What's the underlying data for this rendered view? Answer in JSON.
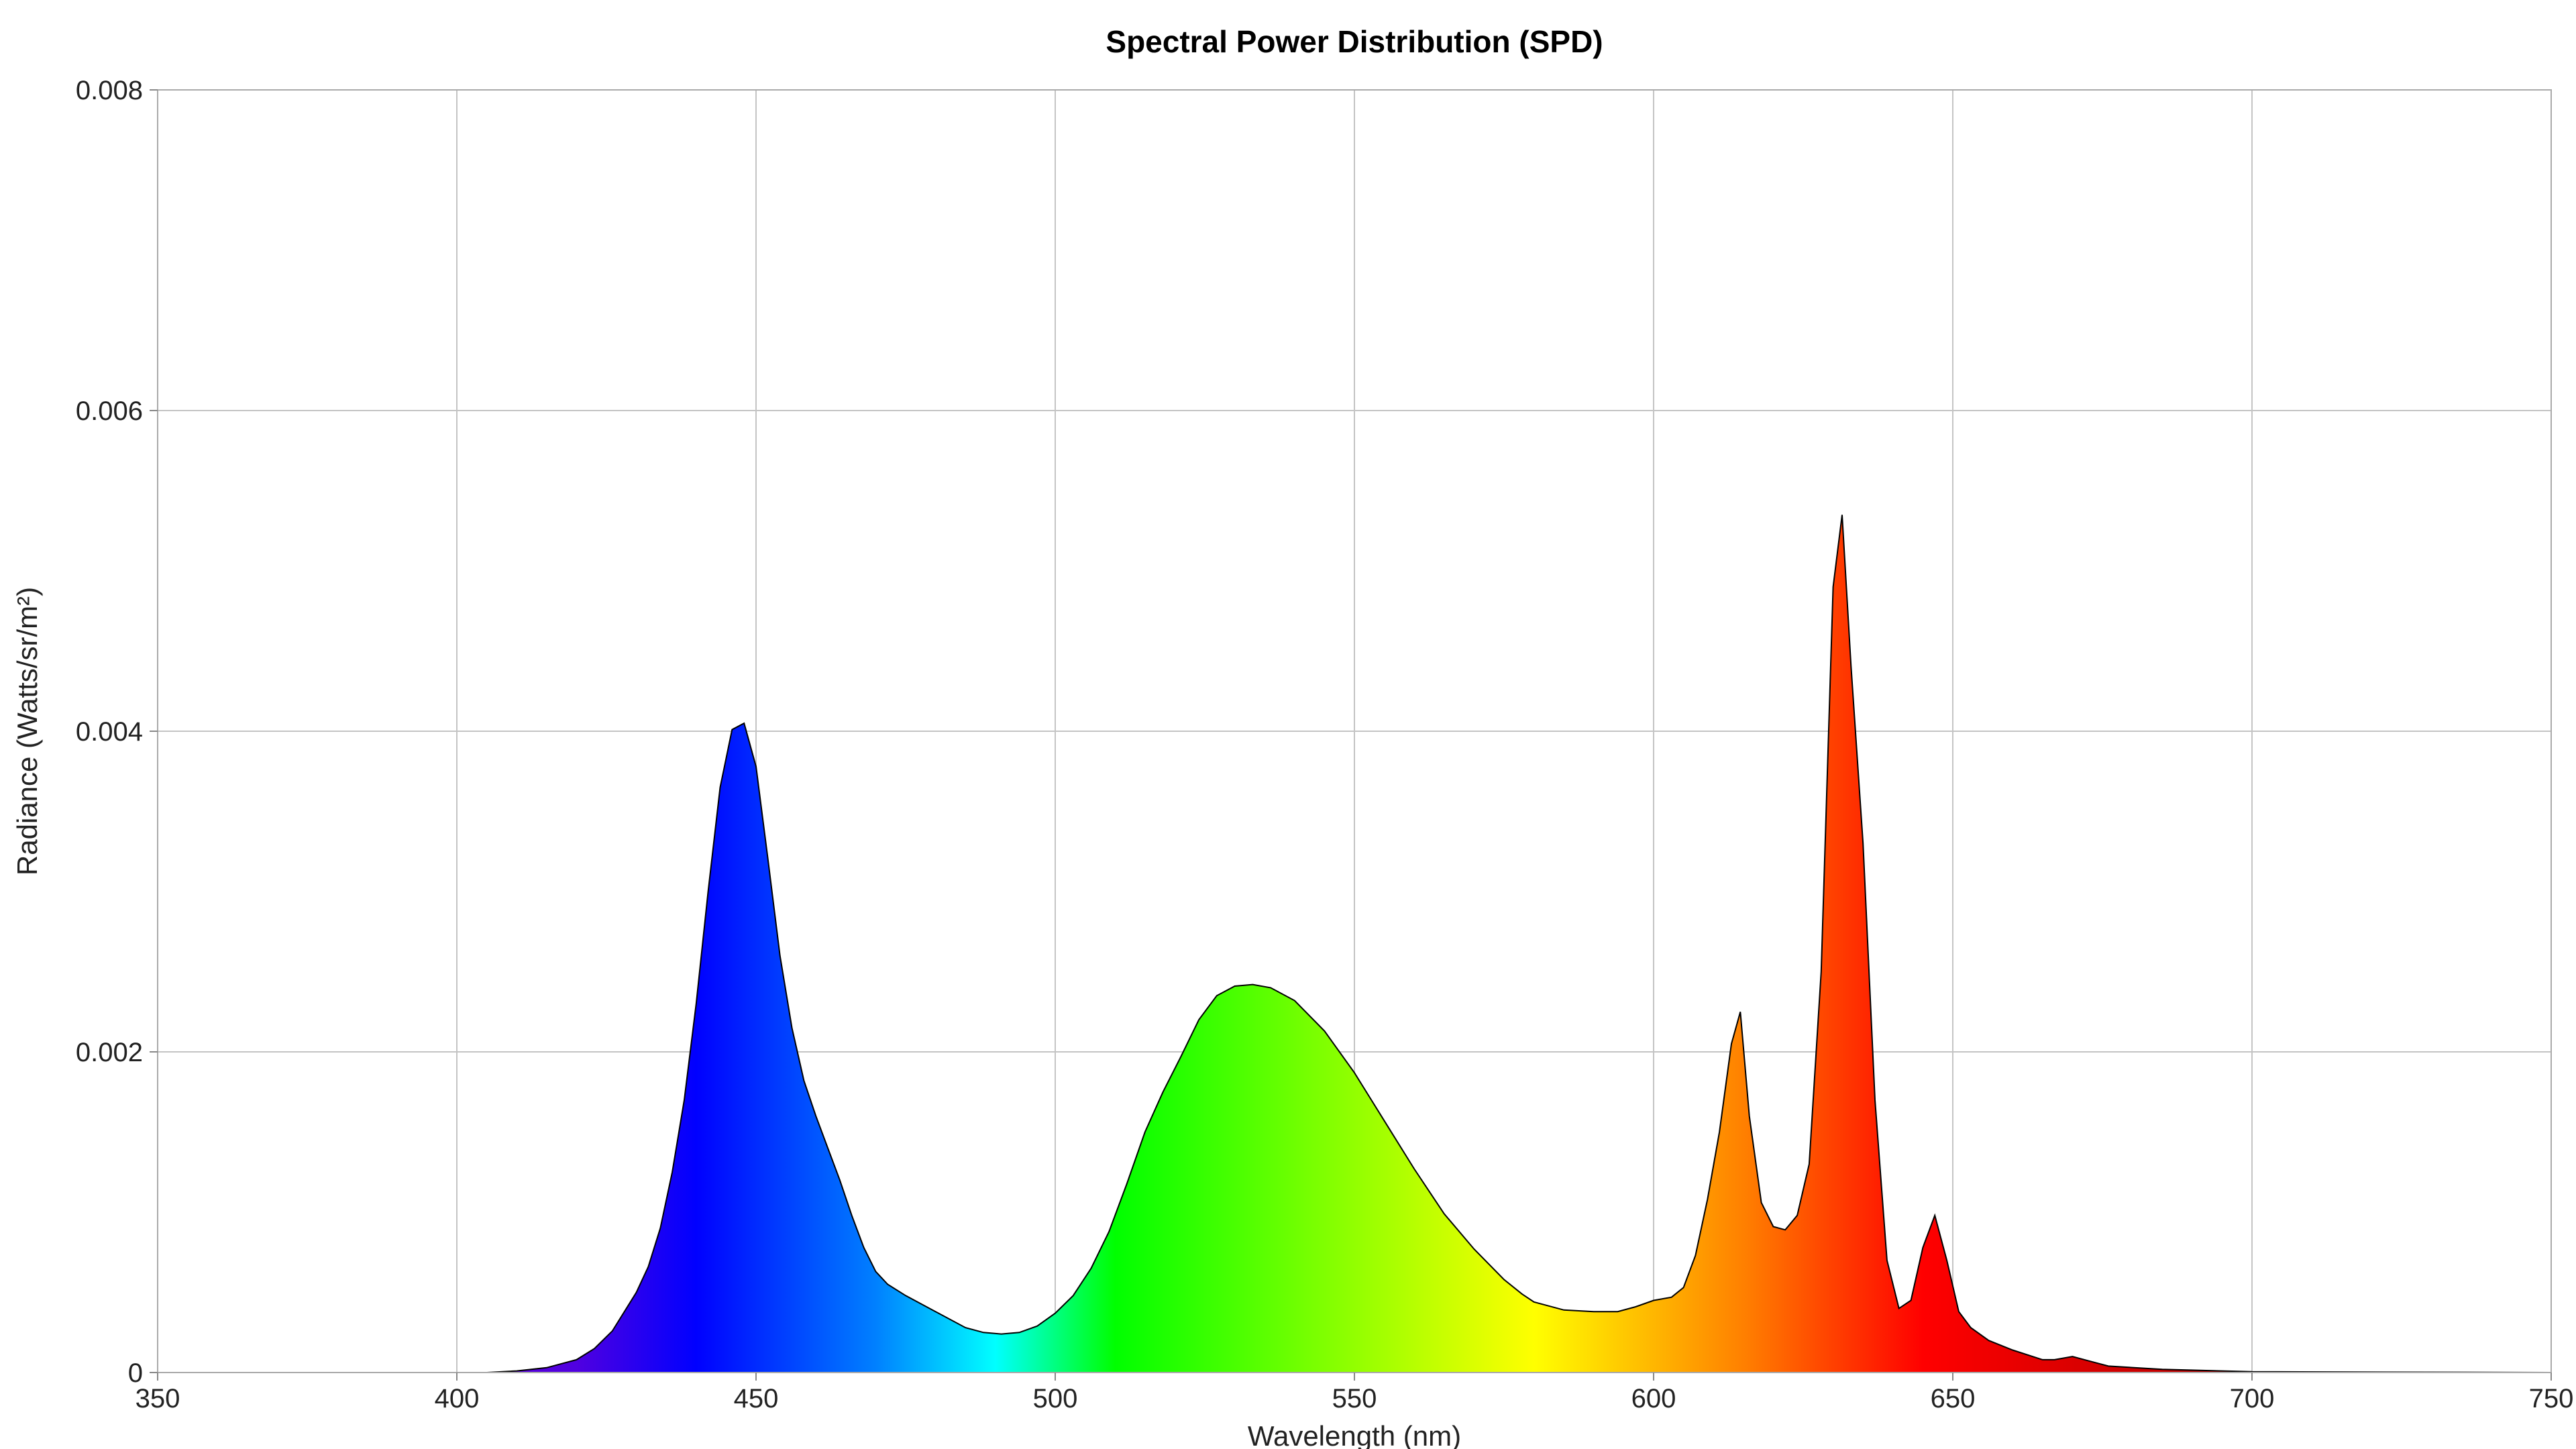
{
  "chart_data": {
    "type": "area",
    "title": "Spectral Power Distribution (SPD)",
    "xlabel": "Wavelength (nm)",
    "ylabel": "Radiance (Watts/sr/m²)",
    "xlim": [
      350,
      750
    ],
    "ylim": [
      0,
      0.008
    ],
    "grid": true,
    "fill": "spectral wavelength gradient",
    "outline_color": "#000000",
    "x_ticks": [
      "350",
      "400",
      "450",
      "500",
      "550",
      "600",
      "650",
      "700",
      "750"
    ],
    "y_ticks": [
      "0",
      "0.002",
      "0.004",
      "0.006",
      "0.008"
    ],
    "x": [
      350,
      405,
      410,
      415,
      420,
      423,
      426,
      428,
      430,
      432,
      434,
      436,
      438,
      440,
      442,
      444,
      446,
      448,
      450,
      452,
      454,
      456,
      458,
      460,
      462,
      464,
      466,
      468,
      470,
      472,
      475,
      480,
      485,
      488,
      491,
      494,
      497,
      500,
      503,
      506,
      509,
      512,
      515,
      518,
      521,
      524,
      527,
      530,
      533,
      536,
      540,
      545,
      550,
      555,
      560,
      565,
      570,
      575,
      578,
      580,
      585,
      590,
      594,
      597,
      600,
      603,
      605,
      607,
      609,
      611,
      613,
      614.5,
      616,
      618,
      620,
      622,
      624,
      626,
      628,
      630,
      631.5,
      633,
      635,
      637,
      639,
      641,
      643,
      645,
      647,
      649,
      651,
      653,
      656,
      660,
      665,
      667,
      670,
      673,
      676,
      685,
      700,
      750
    ],
    "y": [
      0,
      0,
      1e-05,
      3e-05,
      8e-05,
      0.00015,
      0.00026,
      0.00038,
      0.0005,
      0.00066,
      0.0009,
      0.00125,
      0.0017,
      0.0023,
      0.003,
      0.00365,
      0.00401,
      0.00405,
      0.00378,
      0.0032,
      0.0026,
      0.00215,
      0.00182,
      0.0016,
      0.0014,
      0.0012,
      0.00098,
      0.00078,
      0.00063,
      0.00055,
      0.00048,
      0.00038,
      0.00028,
      0.00025,
      0.00024,
      0.00025,
      0.00029,
      0.00037,
      0.00048,
      0.00065,
      0.00088,
      0.00118,
      0.0015,
      0.00175,
      0.00197,
      0.0022,
      0.00235,
      0.00241,
      0.00242,
      0.0024,
      0.00232,
      0.00213,
      0.00187,
      0.00157,
      0.00127,
      0.00099,
      0.00077,
      0.00058,
      0.00049,
      0.00044,
      0.00039,
      0.00038,
      0.00038,
      0.00041,
      0.00045,
      0.00047,
      0.00053,
      0.00073,
      0.00108,
      0.0015,
      0.00205,
      0.00225,
      0.0016,
      0.00106,
      0.00091,
      0.00089,
      0.00098,
      0.0013,
      0.0025,
      0.0049,
      0.00535,
      0.0044,
      0.0033,
      0.0017,
      0.0007,
      0.0004,
      0.00045,
      0.00078,
      0.00098,
      0.0007,
      0.00038,
      0.00028,
      0.0002,
      0.00014,
      8e-05,
      8e-05,
      0.0001,
      7e-05,
      4e-05,
      2e-05,
      5e-06,
      0
    ],
    "spectrum_stops": [
      {
        "nm": 380,
        "color": "#6a00c8"
      },
      {
        "nm": 420,
        "color": "#5000e0"
      },
      {
        "nm": 440,
        "color": "#0000ff"
      },
      {
        "nm": 470,
        "color": "#0080ff"
      },
      {
        "nm": 490,
        "color": "#00ffff"
      },
      {
        "nm": 510,
        "color": "#00ff00"
      },
      {
        "nm": 545,
        "color": "#80ff00"
      },
      {
        "nm": 580,
        "color": "#ffff00"
      },
      {
        "nm": 615,
        "color": "#ff8000"
      },
      {
        "nm": 645,
        "color": "#ff0000"
      },
      {
        "nm": 700,
        "color": "#b00000"
      }
    ]
  }
}
